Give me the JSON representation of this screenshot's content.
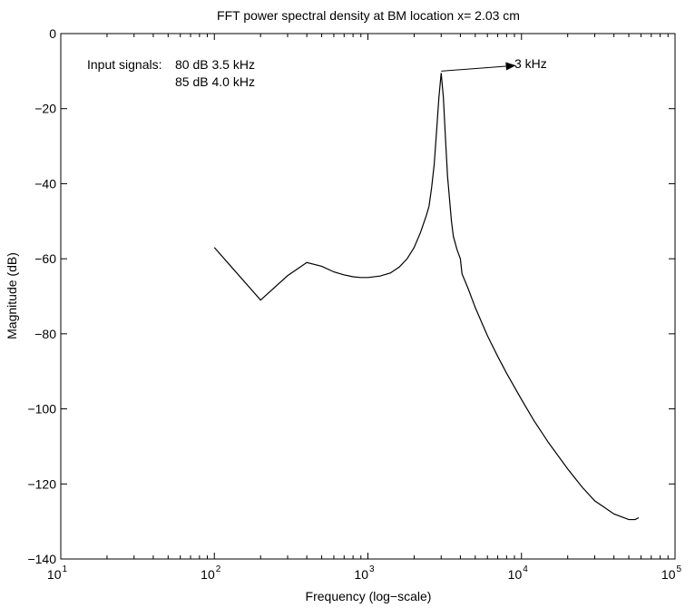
{
  "chart_data": {
    "type": "line",
    "title": "FFT power spectral density at BM location x= 2.03 cm",
    "xlabel": "Frequency (log−scale)",
    "ylabel": "Magnitude (dB)",
    "xscale": "log",
    "xlim": [
      10,
      100000
    ],
    "ylim": [
      -140,
      0
    ],
    "grid": false,
    "xticks": [
      {
        "value": 10,
        "base": "10",
        "exp": "1"
      },
      {
        "value": 100,
        "base": "10",
        "exp": "2"
      },
      {
        "value": 1000,
        "base": "10",
        "exp": "3"
      },
      {
        "value": 10000,
        "base": "10",
        "exp": "4"
      },
      {
        "value": 100000,
        "base": "10",
        "exp": "5"
      }
    ],
    "yticks": [
      {
        "value": 0,
        "label": "0"
      },
      {
        "value": -20,
        "label": "−20"
      },
      {
        "value": -40,
        "label": "−40"
      },
      {
        "value": -60,
        "label": "−60"
      },
      {
        "value": -80,
        "label": "−80"
      },
      {
        "value": -100,
        "label": "−100"
      },
      {
        "value": -120,
        "label": "−120"
      },
      {
        "value": -140,
        "label": "−140"
      }
    ],
    "series": [
      {
        "x": [
          100,
          200,
          300,
          400,
          500,
          600,
          700,
          800,
          900,
          1000,
          1200,
          1400,
          1600,
          1800,
          2000,
          2200,
          2400,
          2500,
          2600,
          2700,
          2800,
          2900,
          3000,
          3100,
          3200,
          3300,
          3500,
          3600,
          3800,
          4000,
          4100,
          4500,
          5000,
          6000,
          7000,
          8000,
          10000,
          12000,
          15000,
          20000,
          25000,
          30000,
          40000,
          50000,
          55000,
          58000
        ],
        "y": [
          -57,
          -71,
          -64.5,
          -61,
          -62,
          -63.5,
          -64.3,
          -64.8,
          -65,
          -65,
          -64.6,
          -63.8,
          -62.2,
          -60,
          -57,
          -53,
          -48.5,
          -46,
          -41,
          -35,
          -26,
          -17,
          -10.5,
          -17,
          -28,
          -38,
          -50,
          -54,
          -57.5,
          -60,
          -64,
          -68,
          -73,
          -80.5,
          -86,
          -90.5,
          -97.5,
          -103,
          -109,
          -116,
          -121,
          -124.5,
          -128,
          -129.5,
          -129.5,
          -129
        ]
      }
    ],
    "annotations": {
      "input_signals_label": "Input signals:",
      "input_signal_1": "80 dB 3.5 kHz",
      "input_signal_2": "85 dB 4.0 kHz",
      "peak_label": "3 kHz",
      "arrow_from": {
        "x": 3000,
        "y": -10
      },
      "arrow_to": {
        "x": 9200,
        "y": -8.5
      }
    }
  }
}
